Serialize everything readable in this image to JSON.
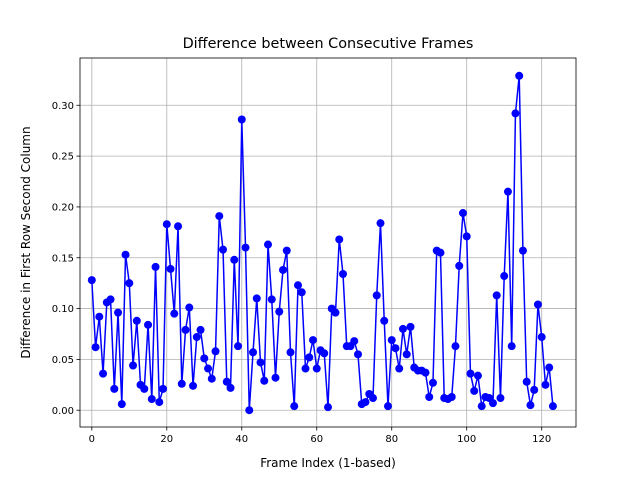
{
  "chart_data": {
    "type": "line",
    "title": "Difference between Consecutive Frames",
    "xlabel": "Frame Index (1-based)",
    "ylabel": "Difference in First Row Second Column",
    "xlim": [
      -3.15,
      129.15
    ],
    "ylim": [
      -0.0165,
      0.3465
    ],
    "xticks": [
      0,
      20,
      40,
      60,
      80,
      100,
      120
    ],
    "yticks": [
      0.0,
      0.05,
      0.1,
      0.15,
      0.2,
      0.25,
      0.3
    ],
    "xtick_labels": [
      "0",
      "20",
      "40",
      "60",
      "80",
      "100",
      "120"
    ],
    "ytick_labels": [
      "0.00",
      "0.05",
      "0.10",
      "0.15",
      "0.20",
      "0.25",
      "0.30"
    ],
    "grid": true,
    "series": [
      {
        "color": "#0000ff",
        "marker": "circle",
        "x": [
          0,
          1,
          2,
          3,
          4,
          5,
          6,
          7,
          8,
          9,
          10,
          11,
          12,
          13,
          14,
          15,
          16,
          17,
          18,
          19,
          20,
          21,
          22,
          23,
          24,
          25,
          26,
          27,
          28,
          29,
          30,
          31,
          32,
          33,
          34,
          35,
          36,
          37,
          38,
          39,
          40,
          41,
          42,
          43,
          44,
          45,
          46,
          47,
          48,
          49,
          50,
          51,
          52,
          53,
          54,
          55,
          56,
          57,
          58,
          59,
          60,
          61,
          62,
          63,
          64,
          65,
          66,
          67,
          68,
          69,
          70,
          71,
          72,
          73,
          74,
          75,
          76,
          77,
          78,
          79,
          80,
          81,
          82,
          83,
          84,
          85,
          86,
          87,
          88,
          89,
          90,
          91,
          92,
          93,
          94,
          95,
          96,
          97,
          98,
          99,
          100,
          101,
          102,
          103,
          104,
          105,
          106,
          107,
          108,
          109,
          110,
          111,
          112,
          113,
          114,
          115,
          116,
          117,
          118,
          119,
          120,
          121,
          122,
          123
        ],
        "values": [
          0.128,
          0.062,
          0.092,
          0.036,
          0.106,
          0.109,
          0.021,
          0.096,
          0.006,
          0.153,
          0.125,
          0.044,
          0.088,
          0.025,
          0.021,
          0.084,
          0.011,
          0.141,
          0.008,
          0.021,
          0.183,
          0.139,
          0.095,
          0.181,
          0.026,
          0.079,
          0.101,
          0.024,
          0.072,
          0.079,
          0.051,
          0.041,
          0.031,
          0.058,
          0.191,
          0.158,
          0.028,
          0.022,
          0.148,
          0.063,
          0.286,
          0.16,
          0.0,
          0.057,
          0.11,
          0.047,
          0.029,
          0.163,
          0.109,
          0.032,
          0.097,
          0.138,
          0.157,
          0.057,
          0.004,
          0.123,
          0.116,
          0.041,
          0.052,
          0.069,
          0.041,
          0.059,
          0.056,
          0.003,
          0.1,
          0.096,
          0.168,
          0.134,
          0.063,
          0.063,
          0.068,
          0.055,
          0.006,
          0.008,
          0.016,
          0.012,
          0.113,
          0.184,
          0.088,
          0.004,
          0.069,
          0.061,
          0.041,
          0.08,
          0.055,
          0.082,
          0.042,
          0.039,
          0.039,
          0.037,
          0.013,
          0.027,
          0.157,
          0.155,
          0.012,
          0.011,
          0.013,
          0.063,
          0.142,
          0.194,
          0.171,
          0.036,
          0.019,
          0.034,
          0.004,
          0.013,
          0.012,
          0.007,
          0.113,
          0.012,
          0.132,
          0.215,
          0.063,
          0.292,
          0.329,
          0.157,
          0.028,
          0.005,
          0.02,
          0.104,
          0.072,
          0.025,
          0.042,
          0.004
        ]
      }
    ]
  }
}
